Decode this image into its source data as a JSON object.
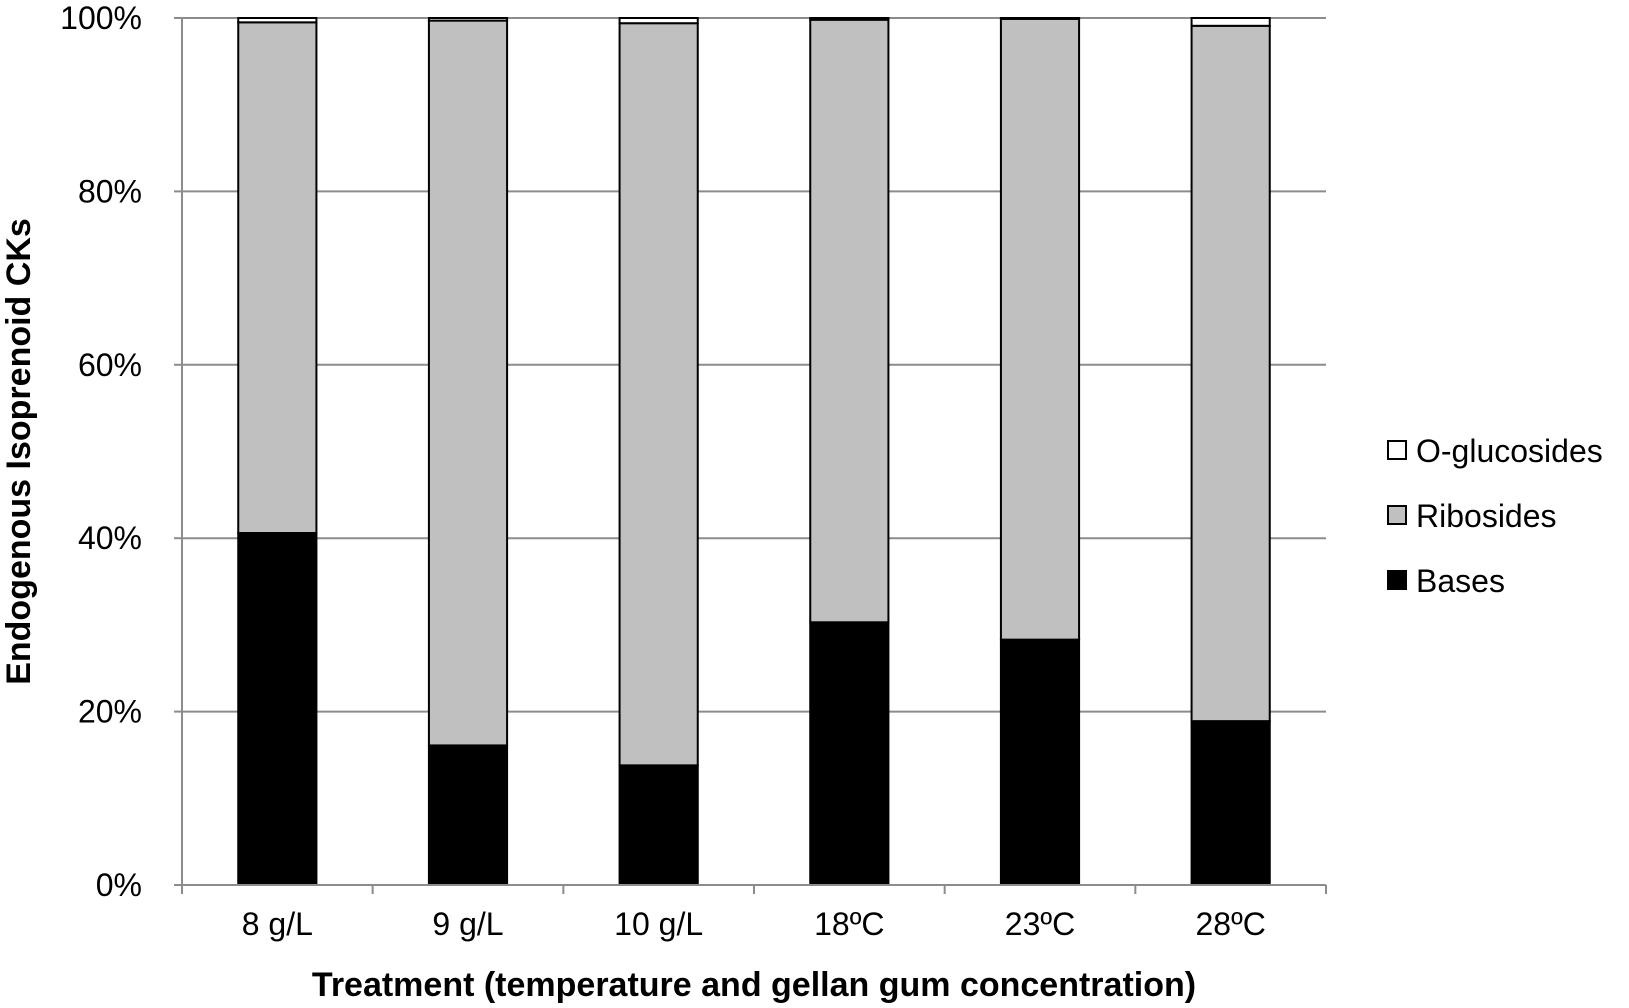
{
  "chart_data": {
    "type": "bar",
    "stacked": true,
    "percent": true,
    "title": "",
    "xlabel": "Treatment (temperature and gellan gum concentration)",
    "ylabel": "Endogenous Isoprenoid CKs",
    "ylim": [
      0,
      100
    ],
    "yticks": [
      "0%",
      "20%",
      "40%",
      "60%",
      "80%",
      "100%"
    ],
    "grid": true,
    "legend_position": "right",
    "categories": [
      "8 g/L",
      "9 g/L",
      "10 g/L",
      "18ºC",
      "23ºC",
      "28ºC"
    ],
    "series": [
      {
        "name": "Bases",
        "color": "#000000",
        "values": [
          40.6,
          16.1,
          13.8,
          30.3,
          28.3,
          18.9
        ]
      },
      {
        "name": "Ribosides",
        "color": "#c0c0c0",
        "values": [
          58.9,
          83.6,
          85.6,
          69.5,
          71.6,
          80.2
        ]
      },
      {
        "name": "O-glucosides",
        "color": "#ffffff",
        "values": [
          0.5,
          0.3,
          0.6,
          0.2,
          0.1,
          0.9
        ]
      }
    ],
    "legend_order": [
      "O-glucosides",
      "Ribosides",
      "Bases"
    ]
  }
}
